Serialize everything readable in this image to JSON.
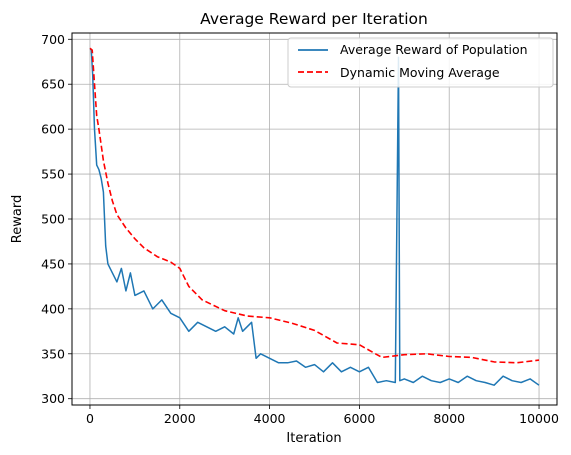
{
  "chart_data": {
    "type": "line",
    "title": "Average Reward per Iteration",
    "xlabel": "Iteration",
    "ylabel": "Reward",
    "xlim": [
      -400,
      10400
    ],
    "ylim": [
      293,
      707
    ],
    "xticks": [
      0,
      2000,
      4000,
      6000,
      8000,
      10000
    ],
    "yticks": [
      300,
      350,
      400,
      450,
      500,
      550,
      600,
      650,
      700
    ],
    "grid": true,
    "legend_position": "top-right",
    "series": [
      {
        "name": "Average Reward of Population",
        "style": "solid",
        "color": "#1f77b4",
        "x": [
          0,
          30,
          60,
          100,
          150,
          200,
          250,
          300,
          350,
          400,
          500,
          600,
          700,
          800,
          900,
          1000,
          1200,
          1400,
          1600,
          1800,
          2000,
          2200,
          2400,
          2600,
          2800,
          3000,
          3200,
          3300,
          3400,
          3600,
          3700,
          3800,
          4000,
          4200,
          4400,
          4600,
          4800,
          5000,
          5200,
          5400,
          5600,
          5800,
          6000,
          6200,
          6400,
          6600,
          6800,
          6870,
          6900,
          7000,
          7200,
          7400,
          7600,
          7800,
          8000,
          8200,
          8400,
          8600,
          8800,
          9000,
          9200,
          9400,
          9600,
          9800,
          10000
        ],
        "values": [
          690,
          688,
          660,
          600,
          560,
          555,
          545,
          530,
          470,
          450,
          440,
          430,
          445,
          420,
          440,
          415,
          420,
          400,
          410,
          395,
          390,
          375,
          385,
          380,
          375,
          380,
          372,
          390,
          375,
          385,
          345,
          350,
          345,
          340,
          340,
          342,
          335,
          338,
          330,
          340,
          330,
          335,
          330,
          335,
          318,
          320,
          318,
          680,
          320,
          322,
          318,
          325,
          320,
          318,
          322,
          318,
          325,
          320,
          318,
          315,
          325,
          320,
          318,
          322,
          315
        ]
      },
      {
        "name": "Dynamic Moving Average",
        "style": "dashed",
        "color": "#ff0000",
        "x": [
          0,
          50,
          100,
          150,
          200,
          300,
          400,
          500,
          600,
          800,
          1000,
          1200,
          1500,
          1800,
          2000,
          2200,
          2500,
          3000,
          3500,
          4000,
          4500,
          5000,
          5500,
          6000,
          6500,
          7000,
          7500,
          8000,
          8500,
          9000,
          9500,
          10000
        ],
        "values": [
          690,
          688,
          650,
          615,
          600,
          565,
          540,
          520,
          505,
          490,
          478,
          468,
          458,
          452,
          445,
          425,
          410,
          398,
          392,
          390,
          384,
          376,
          362,
          360,
          346,
          349,
          350,
          347,
          346,
          341,
          340,
          343
        ]
      }
    ]
  }
}
